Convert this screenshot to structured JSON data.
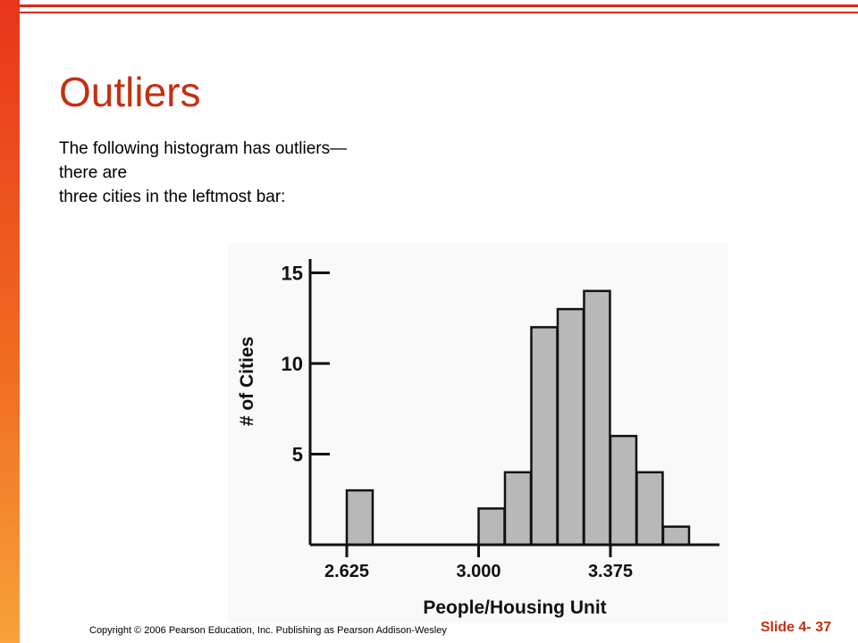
{
  "slide": {
    "title": "Outliers",
    "body_lines": [
      "The following histogram has outliers—",
      "there are",
      "three cities in the leftmost bar:"
    ],
    "copyright": "Copyright © 2006 Pearson Education, Inc. Publishing as Pearson Addison-Wesley",
    "slide_number": "Slide 4- 37"
  },
  "colors": {
    "title": "#c4300f",
    "accent_bar": "#e8351c",
    "bar_fill": "#b8b8b8"
  },
  "chart_data": {
    "type": "bar",
    "title": "",
    "xlabel": "People/Housing Unit",
    "ylabel": "# of Cities",
    "ylim": [
      0,
      16
    ],
    "yticks": [
      5,
      10,
      15
    ],
    "xticks": [
      "2.625",
      "3.000",
      "3.375"
    ],
    "bin_width": 0.075,
    "bins": [
      {
        "x": 2.625,
        "count": 3
      },
      {
        "x": 3.0,
        "count": 2
      },
      {
        "x": 3.075,
        "count": 4
      },
      {
        "x": 3.15,
        "count": 12
      },
      {
        "x": 3.225,
        "count": 13
      },
      {
        "x": 3.3,
        "count": 14
      },
      {
        "x": 3.375,
        "count": 6
      },
      {
        "x": 3.45,
        "count": 4
      },
      {
        "x": 3.525,
        "count": 1
      }
    ],
    "grid": false
  }
}
